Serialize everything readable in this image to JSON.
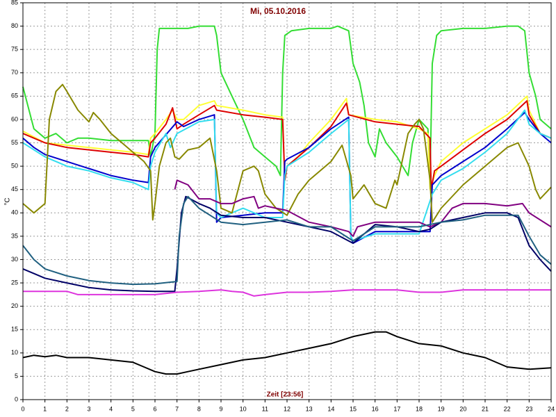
{
  "chart_data": {
    "type": "line",
    "title": "Mi, 05.10.2016",
    "xlabel": "Zeit [23:56]",
    "ylabel": "°C",
    "xlim": [
      0,
      24
    ],
    "ylim": [
      0,
      85
    ],
    "xticks": [
      0,
      1,
      2,
      3,
      4,
      5,
      6,
      7,
      8,
      9,
      10,
      11,
      12,
      13,
      14,
      15,
      16,
      17,
      18,
      19,
      20,
      21,
      22,
      23,
      24
    ],
    "yticks": [
      0,
      5,
      10,
      15,
      20,
      25,
      30,
      35,
      40,
      45,
      50,
      55,
      60,
      65,
      70,
      75,
      80,
      85
    ],
    "grid": true,
    "series": [
      {
        "color": "#33dd33",
        "x": [
          0,
          0.5,
          1,
          1.5,
          2,
          2.5,
          3,
          4,
          5,
          5.7,
          5.8,
          6,
          6.1,
          6.2,
          7,
          7.5,
          8,
          8.7,
          8.8,
          9,
          9.5,
          10,
          10.5,
          11,
          11.5,
          11.7,
          11.8,
          11.9,
          12.2,
          13,
          14,
          14.3,
          14.8,
          15,
          15.3,
          15.5,
          15.7,
          16,
          16.2,
          16.5,
          17,
          17.5,
          17.7,
          18,
          18.4,
          18.5,
          18.6,
          18.8,
          19,
          20,
          21,
          22,
          22.5,
          22.8,
          23,
          23.3,
          23.5,
          24
        ],
        "values": [
          67,
          58,
          56,
          57,
          55,
          56,
          56,
          55.5,
          55.5,
          55.5,
          52,
          57,
          75,
          79.5,
          79.5,
          79.5,
          80,
          80,
          78,
          70,
          65,
          60,
          54,
          52,
          50,
          48,
          70,
          78,
          79,
          79.5,
          79.5,
          80,
          79,
          72,
          68,
          63,
          55,
          52,
          58,
          55,
          52,
          48,
          55,
          60,
          58,
          48,
          72,
          78,
          79,
          79.5,
          79.5,
          80,
          80,
          79,
          70,
          65,
          60,
          58
        ]
      },
      {
        "color": "#ffff33",
        "x": [
          0,
          1,
          2,
          3,
          4,
          5,
          5.7,
          5.8,
          6,
          6.5,
          6.8,
          7,
          7.3,
          8,
          8.7,
          8.8,
          10,
          11,
          11.8,
          11.9,
          12,
          12.5,
          13,
          14,
          14.7,
          14.8,
          16,
          17,
          18,
          18.4,
          18.5,
          18.7,
          19,
          20,
          21,
          22,
          22.9,
          23,
          23.5,
          24
        ],
        "values": [
          57.5,
          55,
          54.5,
          54,
          53.5,
          53,
          52.5,
          56,
          57,
          60,
          62,
          60,
          60,
          63,
          64,
          63,
          62,
          61,
          60.5,
          47,
          50,
          52,
          55,
          60,
          64.5,
          61,
          60,
          59.5,
          58,
          57,
          45,
          48,
          51,
          55,
          58,
          61,
          65,
          62,
          57,
          56
        ]
      },
      {
        "color": "#dd0000",
        "x": [
          0,
          1,
          2,
          3,
          4,
          5,
          5.7,
          5.8,
          6,
          6.5,
          6.8,
          7,
          7.3,
          8,
          8.7,
          8.8,
          10,
          11,
          11.8,
          11.9,
          12,
          13,
          14,
          14.7,
          14.8,
          16,
          17,
          18,
          18.5,
          18.55,
          18.7,
          19,
          20,
          21,
          22,
          22.9,
          23,
          23.5,
          24
        ],
        "values": [
          57,
          55,
          54,
          53.5,
          53,
          52.5,
          52,
          55,
          56,
          59,
          62.5,
          58,
          59,
          61,
          63,
          62,
          61,
          60.5,
          60,
          47,
          50,
          54,
          58.5,
          63.5,
          61,
          59.5,
          59,
          58.5,
          56,
          45,
          49,
          50,
          53.5,
          57,
          60,
          64,
          61,
          57,
          56
        ]
      },
      {
        "color": "#0000cc",
        "x": [
          0,
          0.5,
          1,
          2,
          3,
          4,
          5,
          5.7,
          5.8,
          6,
          7,
          7.3,
          8,
          8.7,
          8.8,
          9,
          10,
          11,
          11.8,
          11.9,
          12,
          13,
          14,
          14.8,
          14.9,
          15,
          16,
          17,
          18,
          18.5,
          18.6,
          19,
          20,
          21,
          22,
          22.8,
          23,
          23.5,
          24
        ],
        "values": [
          56,
          54,
          52.5,
          51,
          49.5,
          48,
          47,
          46.5,
          52,
          54,
          59.5,
          58.5,
          60,
          61,
          38,
          39,
          39.5,
          40,
          40,
          51,
          51.5,
          54,
          58,
          60.5,
          35,
          33.5,
          36,
          36,
          36,
          36,
          46,
          48,
          51,
          54,
          58,
          61.5,
          60,
          57,
          55
        ]
      },
      {
        "color": "#33ddee",
        "x": [
          0,
          1,
          2,
          3,
          4,
          5,
          5.7,
          5.8,
          6,
          6.5,
          6.7,
          7,
          8,
          8.7,
          8.8,
          9,
          10,
          11,
          11.8,
          11.9,
          12,
          13,
          14,
          14.8,
          14.9,
          15,
          16,
          17,
          18,
          18.6,
          19,
          20,
          21,
          22,
          22.8,
          23,
          23.5,
          24
        ],
        "values": [
          55,
          52,
          50,
          49,
          47.5,
          46.5,
          45,
          50,
          53,
          57,
          54,
          57,
          59.5,
          60,
          40,
          39,
          41,
          39,
          39,
          48,
          50,
          53,
          57,
          60,
          35,
          34,
          35.5,
          35.5,
          35.5,
          44,
          47,
          49.5,
          53,
          57,
          62,
          59,
          57,
          56
        ]
      },
      {
        "color": "#888800",
        "x": [
          0,
          0.5,
          1,
          1.2,
          1.5,
          1.8,
          2,
          2.5,
          3,
          3.2,
          3.5,
          4,
          4.5,
          5,
          5.5,
          5.8,
          5.9,
          6,
          6.2,
          6.5,
          6.7,
          6.9,
          7.1,
          7.5,
          8,
          8.5,
          8.8,
          9,
          9.5,
          10,
          10.5,
          10.7,
          11,
          11.5,
          12,
          12.5,
          13,
          14,
          14.5,
          14.9,
          15,
          15.5,
          16,
          16.5,
          16.9,
          17,
          17.5,
          17.8,
          18,
          18.2,
          18.5,
          18.6,
          19,
          20,
          21,
          22,
          22.5,
          23,
          23.3,
          23.5,
          24
        ],
        "values": [
          42,
          40,
          42,
          60,
          66,
          67.5,
          66,
          62,
          59.5,
          61.5,
          60,
          57,
          55,
          53,
          51,
          49,
          38.5,
          42,
          50,
          55,
          56,
          52,
          51.5,
          53.5,
          54,
          56,
          49,
          41,
          40,
          49,
          50,
          49,
          44,
          41,
          39.5,
          44,
          47,
          51,
          54.5,
          48,
          43,
          46,
          42,
          41,
          47,
          46,
          57,
          59,
          60,
          58,
          47,
          38,
          41,
          46,
          50,
          54,
          55,
          50,
          45,
          43,
          45.5
        ]
      },
      {
        "color": "#800080",
        "x": [
          6.9,
          7,
          7.5,
          8,
          8.5,
          9,
          9.5,
          10,
          10.5,
          10.7,
          11,
          11.5,
          12,
          13,
          14,
          14.8,
          15,
          15.2,
          16,
          17,
          18,
          18.5,
          19,
          19.5,
          20,
          21,
          22,
          22.7,
          23,
          24
        ],
        "values": [
          45,
          47,
          46,
          43,
          43,
          42,
          42,
          43,
          43.5,
          41,
          41.5,
          41,
          40.5,
          38,
          37,
          36,
          35,
          37,
          38,
          38,
          38,
          37,
          38,
          41,
          42,
          42,
          41.5,
          42,
          40,
          37
        ]
      },
      {
        "color": "#000066",
        "x": [
          0,
          0.5,
          1,
          2,
          3,
          4,
          5,
          6,
          6.9,
          7,
          7.2,
          7.4,
          8,
          8.5,
          9,
          10,
          11,
          12,
          13,
          14,
          15,
          16,
          17,
          18,
          18.5,
          19,
          20,
          21,
          22,
          22.5,
          23,
          23.5,
          24
        ],
        "values": [
          28,
          27,
          26,
          25,
          24,
          23.5,
          23.3,
          23.2,
          23.2,
          28,
          40,
          43.5,
          42,
          41,
          39.5,
          39,
          39,
          38,
          37,
          36,
          33.5,
          37.5,
          37,
          36,
          36.5,
          38,
          39,
          40,
          40,
          39,
          33,
          30,
          27.5
        ]
      },
      {
        "color": "#206080",
        "x": [
          0,
          0.5,
          1,
          2,
          3,
          4,
          5,
          6,
          7,
          7.1,
          7.3,
          7.5,
          8,
          9,
          10,
          11,
          12,
          13,
          14,
          15,
          16,
          17,
          18,
          19,
          20,
          21,
          22,
          22.5,
          23,
          23.5,
          24
        ],
        "values": [
          33,
          30,
          28,
          26.5,
          25.5,
          25,
          24.7,
          24.8,
          25.3,
          35,
          42,
          43.5,
          41,
          38,
          37.5,
          38,
          38.5,
          37,
          37,
          34,
          37,
          37,
          37,
          38,
          38.5,
          39.5,
          39.5,
          39.5,
          35,
          31,
          29
        ]
      },
      {
        "color": "#dd33dd",
        "x": [
          0,
          2,
          2.5,
          4,
          6,
          7,
          8,
          9,
          9.5,
          10,
          10.5,
          11,
          12,
          13,
          14,
          15,
          17,
          18,
          19,
          20,
          22,
          24
        ],
        "values": [
          23.2,
          23.2,
          22.5,
          22.5,
          22.5,
          23,
          23.2,
          23.5,
          23.2,
          23,
          22.2,
          22.5,
          23,
          23,
          23.2,
          23.5,
          23.5,
          23,
          23,
          23.5,
          23.5,
          23.5
        ]
      },
      {
        "color": "#000000",
        "x": [
          0,
          0.5,
          1,
          1.5,
          2,
          3,
          4,
          5,
          5.5,
          6,
          6.5,
          7,
          7.5,
          8,
          9,
          10,
          11,
          12,
          13,
          14,
          15,
          16,
          16.5,
          17,
          18,
          19,
          20,
          21,
          22,
          23,
          24
        ],
        "values": [
          9,
          9.5,
          9.2,
          9.5,
          9,
          9,
          8.5,
          8,
          7,
          6,
          5.5,
          5.5,
          6,
          6.5,
          7.5,
          8.5,
          9,
          10,
          11,
          12,
          13.5,
          14.5,
          14.5,
          13.5,
          12,
          11.5,
          10,
          9,
          7,
          6.5,
          6.8
        ]
      }
    ]
  }
}
